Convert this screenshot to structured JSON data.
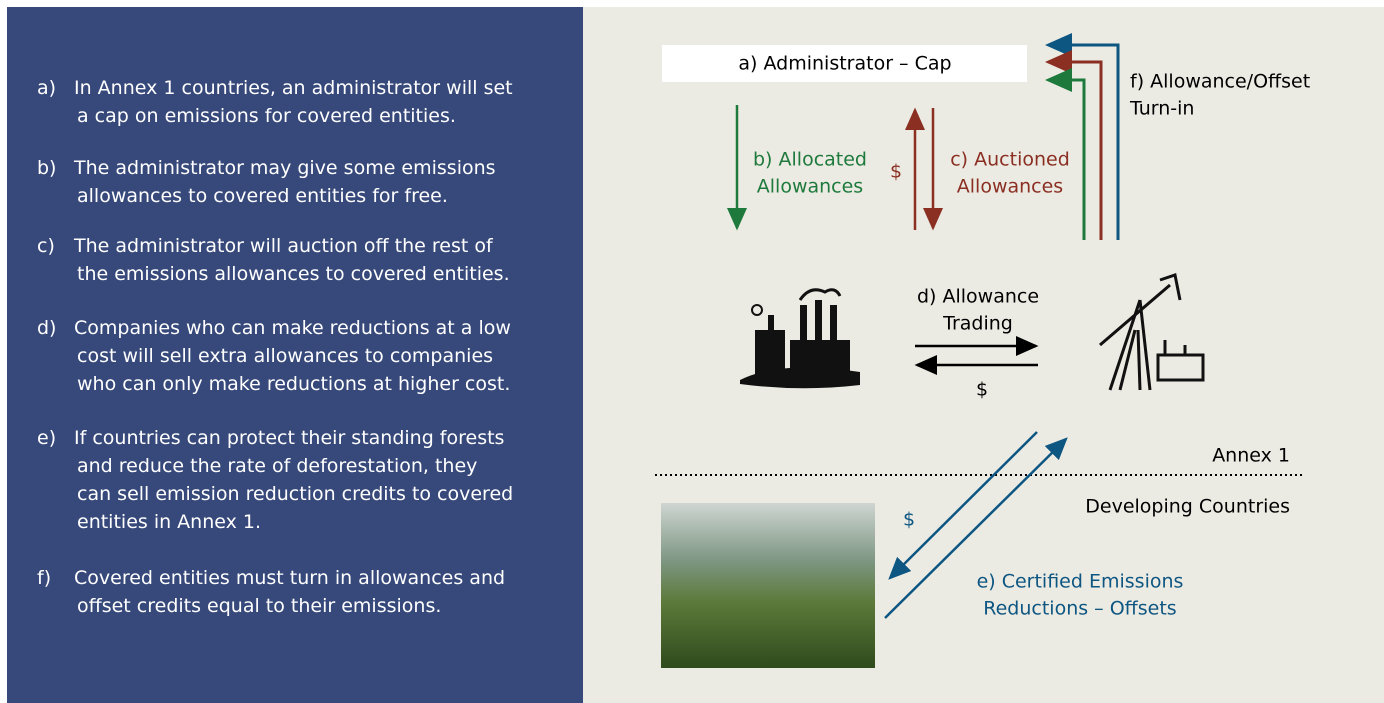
{
  "steps": [
    {
      "marker": "a)",
      "lines": [
        "In Annex 1 countries, an administrator will set",
        "a cap on emissions for covered entities."
      ]
    },
    {
      "marker": "b)",
      "lines": [
        "The administrator may give some emissions",
        "allowances to covered entities for free."
      ]
    },
    {
      "marker": "c)",
      "lines": [
        "The administrator will auction off the rest of",
        "the emissions allowances to covered entities."
      ]
    },
    {
      "marker": "d)",
      "lines": [
        "Companies who can make reductions at a low",
        "cost will sell extra allowances to companies",
        "who can only make reductions at higher cost."
      ]
    },
    {
      "marker": "e)",
      "lines": [
        "If countries can protect their standing forests",
        "and reduce the rate of deforestation, they",
        "can sell emission reduction credits to covered",
        "entities in Annex 1."
      ]
    },
    {
      "marker": "f)",
      "lines": [
        "Covered entities must turn in allowances and",
        "offset credits equal to their emissions."
      ]
    }
  ],
  "diagram": {
    "administrator": "a) Administrator – Cap",
    "allocated": [
      "b) Allocated",
      "Allowances"
    ],
    "auction_payment": "$",
    "auctioned": [
      "c) Auctioned",
      "Allowances"
    ],
    "turn_in": [
      "f) Allowance/Offset",
      "Turn-in"
    ],
    "trading": [
      "d) Allowance",
      "Trading"
    ],
    "trading_payment": "$",
    "annex": "Annex 1",
    "developing": "Developing Countries",
    "offset_payment": "$",
    "certified": [
      "e) Certified Emissions",
      "Reductions – Offsets"
    ]
  }
}
